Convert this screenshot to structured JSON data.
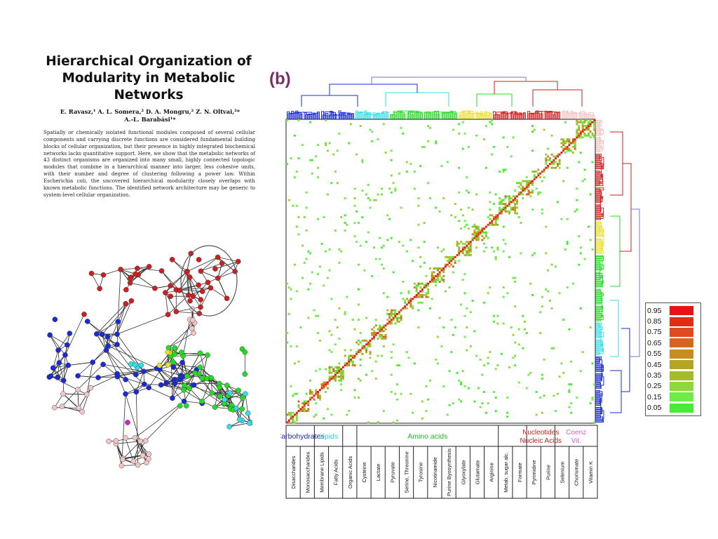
{
  "paper": {
    "title_lines": [
      "Hierarchical Organization of",
      "Modularity in Metabolic",
      "Networks"
    ],
    "authors_line1": "E. Ravasz,¹ A. L. Somera,² D. A. Mongru,² Z. N. Oltvai,²*",
    "authors_line2": "A.-L. Barabási¹*",
    "abstract": "Spatially or chemically isolated functional modules composed of several cellular components and carrying discrete functions are considered fundamental building blocks of cellular organization, but their presence in highly integrated biochemical networks lacks quantitative support. Here, we show that the metabolic networks of 43 distinct organisms are organized into many small, highly connected topologic modules that combine in a hierarchical manner into larger, less cohesive units, with their number and degree of clustering following a power law. Within Escherichia coli, the uncovered hierarchical modularity closely overlaps with known metabolic functions. The identified network architecture may be generic to system-level cellular organization."
  },
  "panel_label": "(b)",
  "colors": {
    "red": "#cc1f1f",
    "blue": "#1a2bd1",
    "green": "#22dd22",
    "cyan": "#33dde8",
    "pink": "#f2c4c4",
    "yellow": "#e8e02a",
    "magenta": "#d020d0",
    "lipids_text": "#33c9e8",
    "amino_text": "#22bb22",
    "nucleo_text": "#cc1f1f",
    "coenz_text": "#d060d0",
    "carb_text": "#1a2bb1"
  },
  "categories": [
    {
      "name": "Carbohydrates",
      "color_key": "carb_text",
      "subs": [
        "Disaccharides",
        "Monosaccharides"
      ]
    },
    {
      "name": "Lipids",
      "color_key": "lipids_text",
      "subs": [
        "Membrane Lipids",
        "Fatty Acids"
      ]
    },
    {
      "name": "",
      "color_key": "carb_text",
      "subs": [
        "Organic Acids"
      ]
    },
    {
      "name": "Amino acids",
      "color_key": "amino_text",
      "subs": [
        "Cysteine",
        "Lactate",
        "Pyruvate",
        "Serine, Threonine",
        "Tyrosine",
        "Nicotinamide",
        "Purine Byosynthesis",
        "Glyoxylate",
        "Glutamate",
        "Arginine"
      ]
    },
    {
      "name": "",
      "color_key": "carb_text",
      "subs": [
        "Metab. sugar alc.",
        "Formate"
      ]
    },
    {
      "name": "Nucleotides Nucleic Acids",
      "color_key": "nucleo_text",
      "subs": [
        "Pyrimidine",
        "Purine"
      ]
    },
    {
      "name": "Coenz Vit.",
      "color_key": "coenz_text",
      "subs": [
        "Selenium",
        "Chorismate",
        "Vitamin K"
      ]
    }
  ],
  "legend": [
    {
      "label": "0.95",
      "color": "#ee1111"
    },
    {
      "label": "0.85",
      "color": "#e62a18"
    },
    {
      "label": "0.75",
      "color": "#e04a1e"
    },
    {
      "label": "0.65",
      "color": "#d8651f"
    },
    {
      "label": "0.55",
      "color": "#c98c22"
    },
    {
      "label": "0.45",
      "color": "#b5a525"
    },
    {
      "label": "0.35",
      "color": "#a2bd28"
    },
    {
      "label": "0.25",
      "color": "#8ed83a"
    },
    {
      "label": "0.15",
      "color": "#6fec4a"
    },
    {
      "label": "0.05",
      "color": "#44ee33"
    }
  ]
}
